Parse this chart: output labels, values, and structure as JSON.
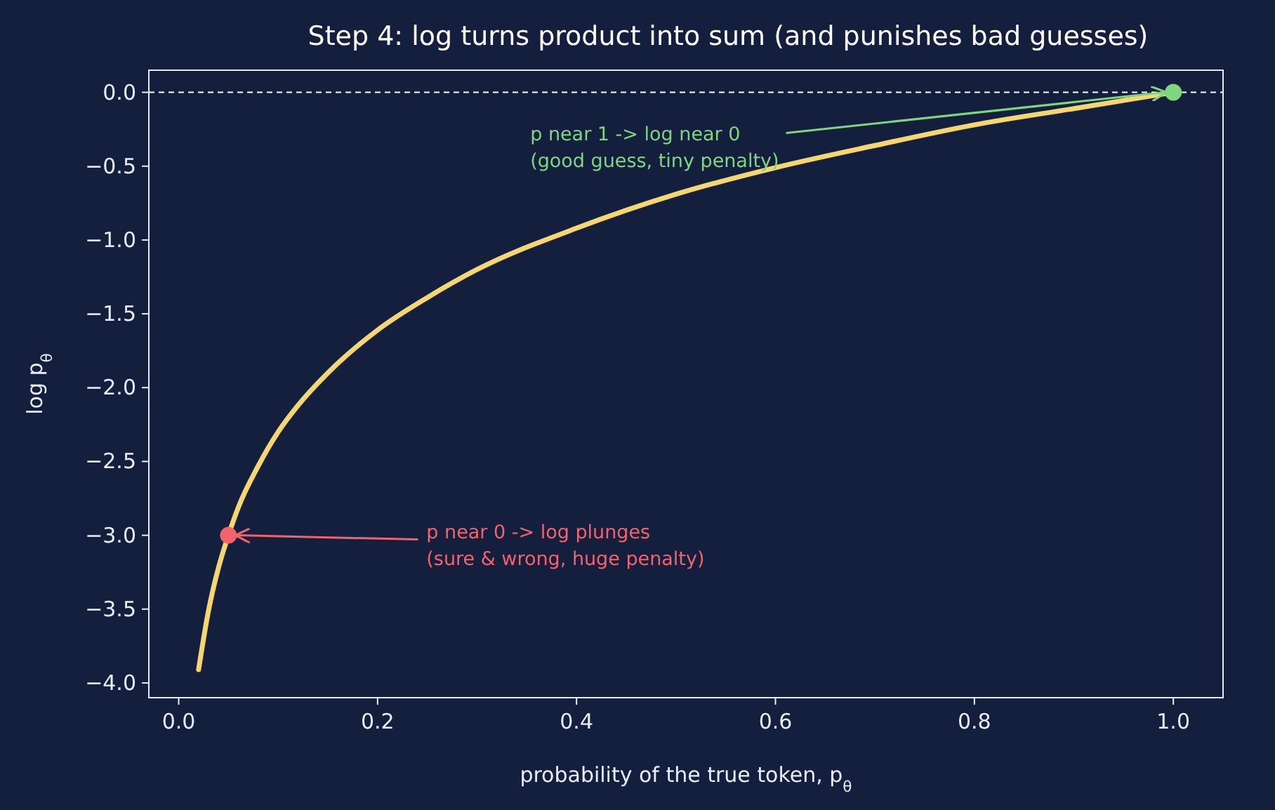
{
  "chart_data": {
    "type": "line",
    "title": "Step 4: log turns product into sum (and punishes bad guesses)",
    "xlabel": "probability of the true token, p$_{θ}$",
    "ylabel": "log p$_{θ}$",
    "series": [
      {
        "color": "#f5d76e",
        "marker": "none",
        "x": [
          0.02,
          0.03,
          0.04,
          0.05,
          0.06,
          0.08,
          0.1,
          0.12,
          0.15,
          0.2,
          0.25,
          0.3,
          0.4,
          0.5,
          0.6,
          0.7,
          0.8,
          0.9,
          1.0
        ],
        "values": [
          -3.91,
          -3.51,
          -3.22,
          -3.0,
          -2.81,
          -2.53,
          -2.3,
          -2.12,
          -1.9,
          -1.61,
          -1.39,
          -1.2,
          -0.92,
          -0.69,
          -0.51,
          -0.36,
          -0.22,
          -0.11,
          0
        ]
      },
      {
        "type": "scatter",
        "marker": "circle",
        "color": "#7fd67f",
        "x": [
          1.0
        ],
        "values": [
          0
        ]
      },
      {
        "type": "scatter",
        "marker": "circle",
        "color": "#f2636b",
        "x": [
          0.05
        ],
        "values": [
          -3.0
        ]
      }
    ],
    "annotations": [
      {
        "text": "p near 1 -> log near 0\n(good guess, tiny penalty)",
        "x": 1.0,
        "y": 0
      },
      {
        "text": "p near 0 -> log plunges\n(sure & wrong, huge penalty)",
        "x": 0.05,
        "y": -3.0
      }
    ],
    "ref_lines": [
      {
        "axis": "y",
        "value": 0,
        "color": "#ffffff",
        "line_style": "dashed"
      }
    ],
    "xlim": [
      -0.03,
      1.05
    ],
    "ylim": [
      -4.1,
      0.15
    ],
    "xticks": [
      {
        "value": 0,
        "label": "0.0"
      },
      0.2,
      0.4,
      0.6,
      0.8,
      {
        "value": 1,
        "label": "1.0"
      }
    ],
    "yticks": [
      {
        "value": 0,
        "label": "0.0"
      },
      {
        "value": -0.5,
        "label": "−0.5"
      },
      {
        "value": -1,
        "label": "−1.0"
      },
      {
        "value": -1.5,
        "label": "−1.5"
      },
      {
        "value": -2,
        "label": "−2.0"
      },
      {
        "value": -2.5,
        "label": "−2.5"
      },
      {
        "value": -3,
        "label": "−3.0"
      },
      {
        "value": -3.5,
        "label": "−3.5"
      },
      {
        "value": -4,
        "label": "−4.0"
      }
    ],
    "grid": false,
    "line_style": "solid"
  }
}
